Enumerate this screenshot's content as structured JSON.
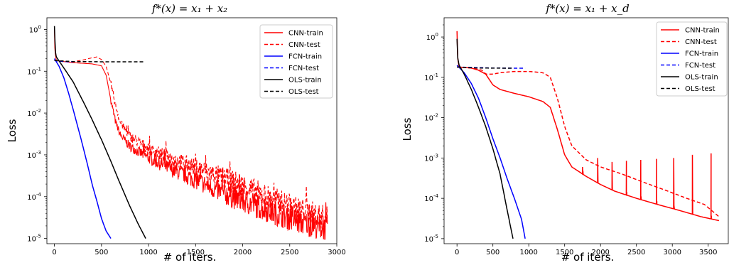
{
  "chart_data": [
    {
      "type": "line",
      "title": "f*(x) = x₁ + x₂",
      "xlabel": "# of iters.",
      "ylabel": "Loss",
      "yscale": "log",
      "xlim": [
        -80,
        3000
      ],
      "ylim": [
        7.5e-06,
        1.9
      ],
      "xticks": [
        0,
        500,
        1000,
        1500,
        2000,
        2500,
        3000
      ],
      "xtick_labels": [
        "0",
        "500",
        "1000",
        "1500",
        "2000",
        "2500",
        "3000"
      ],
      "yticks": [
        1,
        0.1,
        0.01,
        0.001,
        0.0001,
        1e-05
      ],
      "ytick_labels": [
        [
          "10",
          "0"
        ],
        [
          "10",
          "-1"
        ],
        [
          "10",
          "-2"
        ],
        [
          "10",
          "-3"
        ],
        [
          "10",
          "-4"
        ],
        [
          "10",
          "-5"
        ]
      ],
      "legend_position": "top-right",
      "legend": [
        "CNN-train",
        "CNN-test",
        "FCN-train",
        "FCN-test",
        "OLS-train",
        "OLS-test"
      ],
      "series": [
        {
          "name": "CNN-train",
          "color": "#ff0000",
          "style": "solid",
          "noisy": true,
          "points": [
            [
              0,
              1.0
            ],
            [
              5,
              0.3
            ],
            [
              20,
              0.18
            ],
            [
              100,
              0.17
            ],
            [
              200,
              0.16
            ],
            [
              300,
              0.155
            ],
            [
              400,
              0.15
            ],
            [
              500,
              0.135
            ],
            [
              550,
              0.08
            ],
            [
              600,
              0.02
            ],
            [
              650,
              0.006
            ],
            [
              700,
              0.003
            ],
            [
              800,
              0.0016
            ],
            [
              1000,
              0.00085
            ],
            [
              1200,
              0.0005
            ],
            [
              1500,
              0.00025
            ],
            [
              1800,
              0.00012
            ],
            [
              2000,
              8e-05
            ],
            [
              2300,
              4.5e-05
            ],
            [
              2600,
              2.5e-05
            ],
            [
              2900,
              1.7e-05
            ]
          ]
        },
        {
          "name": "CNN-test",
          "color": "#ff0000",
          "style": "dashed",
          "noisy": true,
          "points": [
            [
              0,
              0.18
            ],
            [
              100,
              0.17
            ],
            [
              200,
              0.17
            ],
            [
              300,
              0.185
            ],
            [
              400,
              0.21
            ],
            [
              450,
              0.22
            ],
            [
              500,
              0.19
            ],
            [
              550,
              0.13
            ],
            [
              600,
              0.05
            ],
            [
              650,
              0.015
            ],
            [
              700,
              0.006
            ],
            [
              800,
              0.0028
            ],
            [
              1000,
              0.0014
            ],
            [
              1200,
              0.0009
            ],
            [
              1500,
              0.0005
            ],
            [
              1800,
              0.00028
            ],
            [
              2000,
              0.00018
            ],
            [
              2300,
              9e-05
            ],
            [
              2600,
              5e-05
            ],
            [
              2900,
              3e-05
            ]
          ]
        },
        {
          "name": "FCN-train",
          "color": "#0000ff",
          "style": "solid",
          "noisy": false,
          "points": [
            [
              0,
              0.2
            ],
            [
              50,
              0.13
            ],
            [
              100,
              0.07
            ],
            [
              150,
              0.03
            ],
            [
              200,
              0.012
            ],
            [
              250,
              0.0045
            ],
            [
              300,
              0.0017
            ],
            [
              350,
              0.0006
            ],
            [
              400,
              0.0002
            ],
            [
              450,
              8e-05
            ],
            [
              500,
              3e-05
            ],
            [
              550,
              1.5e-05
            ],
            [
              600,
              1e-05
            ]
          ]
        },
        {
          "name": "FCN-test",
          "color": "#0000ff",
          "style": "dashed",
          "noisy": false,
          "points": [
            [
              0,
              0.18
            ],
            [
              100,
              0.17
            ],
            [
              200,
              0.168
            ]
          ]
        },
        {
          "name": "OLS-train",
          "color": "#000000",
          "style": "solid",
          "noisy": false,
          "points": [
            [
              0,
              1.2
            ],
            [
              10,
              0.3
            ],
            [
              20,
              0.22
            ],
            [
              100,
              0.12
            ],
            [
              200,
              0.055
            ],
            [
              300,
              0.02
            ],
            [
              400,
              0.007
            ],
            [
              500,
              0.0023
            ],
            [
              600,
              0.0007
            ],
            [
              700,
              0.0002
            ],
            [
              800,
              6e-05
            ],
            [
              900,
              2e-05
            ],
            [
              970,
              1e-05
            ]
          ]
        },
        {
          "name": "OLS-test",
          "color": "#000000",
          "style": "dashed",
          "noisy": false,
          "points": [
            [
              0,
              0.18
            ],
            [
              200,
              0.17
            ],
            [
              500,
              0.168
            ],
            [
              960,
              0.168
            ]
          ]
        }
      ]
    },
    {
      "type": "line",
      "title": "f*(x) = x₁ + x_d",
      "xlabel": "# of iters.",
      "ylabel": "Loss",
      "yscale": "log",
      "xlim": [
        -180,
        3780
      ],
      "ylim": [
        7.5e-06,
        3.0
      ],
      "xticks": [
        0,
        500,
        1000,
        1500,
        2000,
        2500,
        3000,
        3500
      ],
      "xtick_labels": [
        "0",
        "500",
        "1000",
        "1500",
        "2000",
        "2500",
        "3000",
        "3500"
      ],
      "yticks": [
        1,
        0.1,
        0.01,
        0.001,
        0.0001,
        1e-05
      ],
      "ytick_labels": [
        [
          "10",
          "0"
        ],
        [
          "10",
          "-1"
        ],
        [
          "10",
          "-2"
        ],
        [
          "10",
          "-3"
        ],
        [
          "10",
          "-4"
        ],
        [
          "10",
          "-5"
        ]
      ],
      "legend_position": "top-right",
      "legend": [
        "CNN-train",
        "CNN-test",
        "FCN-train",
        "FCN-test",
        "OLS-train",
        "OLS-test"
      ],
      "series": [
        {
          "name": "CNN-train",
          "color": "#ff0000",
          "style": "solid",
          "noisy": false,
          "points": [
            [
              0,
              1.4
            ],
            [
              10,
              0.3
            ],
            [
              30,
              0.18
            ],
            [
              200,
              0.17
            ],
            [
              300,
              0.15
            ],
            [
              400,
              0.12
            ],
            [
              500,
              0.065
            ],
            [
              600,
              0.05
            ],
            [
              800,
              0.04
            ],
            [
              1000,
              0.033
            ],
            [
              1200,
              0.025
            ],
            [
              1300,
              0.018
            ],
            [
              1400,
              0.005
            ],
            [
              1500,
              0.0012
            ],
            [
              1600,
              0.0006
            ],
            [
              1800,
              0.00035
            ],
            [
              2000,
              0.00022
            ],
            [
              2200,
              0.00015
            ],
            [
              2500,
              0.0001
            ],
            [
              2800,
              7e-05
            ],
            [
              3100,
              5e-05
            ],
            [
              3400,
              3.5e-05
            ],
            [
              3650,
              2.8e-05
            ]
          ],
          "spikes": [
            [
              1750,
              0.0006
            ],
            [
              1960,
              0.001
            ],
            [
              2160,
              0.0008
            ],
            [
              2360,
              0.00085
            ],
            [
              2560,
              0.0009
            ],
            [
              2780,
              0.00095
            ],
            [
              3020,
              0.001
            ],
            [
              3280,
              0.0012
            ],
            [
              3540,
              0.0013
            ]
          ]
        },
        {
          "name": "CNN-test",
          "color": "#ff0000",
          "style": "dashed",
          "noisy": false,
          "points": [
            [
              0,
              0.18
            ],
            [
              200,
              0.17
            ],
            [
              350,
              0.15
            ],
            [
              400,
              0.12
            ],
            [
              500,
              0.12
            ],
            [
              600,
              0.13
            ],
            [
              800,
              0.14
            ],
            [
              1000,
              0.14
            ],
            [
              1200,
              0.13
            ],
            [
              1300,
              0.1
            ],
            [
              1400,
              0.03
            ],
            [
              1500,
              0.006
            ],
            [
              1600,
              0.002
            ],
            [
              1800,
              0.0009
            ],
            [
              2000,
              0.0006
            ],
            [
              2300,
              0.0004
            ],
            [
              2600,
              0.00025
            ],
            [
              2900,
              0.00016
            ],
            [
              3200,
              0.0001
            ],
            [
              3450,
              7e-05
            ],
            [
              3650,
              3.5e-05
            ]
          ]
        },
        {
          "name": "FCN-train",
          "color": "#0000ff",
          "style": "solid",
          "noisy": false,
          "points": [
            [
              0,
              0.2
            ],
            [
              100,
              0.13
            ],
            [
              200,
              0.07
            ],
            [
              300,
              0.03
            ],
            [
              400,
              0.01
            ],
            [
              500,
              0.003
            ],
            [
              600,
              0.001
            ],
            [
              700,
              0.0003
            ],
            [
              800,
              0.0001
            ],
            [
              900,
              3e-05
            ],
            [
              950,
              1e-05
            ]
          ]
        },
        {
          "name": "FCN-test",
          "color": "#0000ff",
          "style": "dashed",
          "noisy": false,
          "points": [
            [
              0,
              0.18
            ],
            [
              500,
              0.17
            ],
            [
              950,
              0.168
            ]
          ]
        },
        {
          "name": "OLS-train",
          "color": "#000000",
          "style": "solid",
          "noisy": false,
          "points": [
            [
              0,
              0.9
            ],
            [
              10,
              0.3
            ],
            [
              30,
              0.2
            ],
            [
              100,
              0.12
            ],
            [
              200,
              0.05
            ],
            [
              300,
              0.018
            ],
            [
              400,
              0.006
            ],
            [
              500,
              0.0017
            ],
            [
              600,
              0.0004
            ],
            [
              700,
              5e-05
            ],
            [
              780,
              1e-05
            ]
          ]
        },
        {
          "name": "OLS-test",
          "color": "#000000",
          "style": "dashed",
          "noisy": false,
          "points": [
            [
              0,
              0.18
            ],
            [
              300,
              0.17
            ],
            [
              780,
              0.168
            ]
          ]
        }
      ]
    }
  ]
}
